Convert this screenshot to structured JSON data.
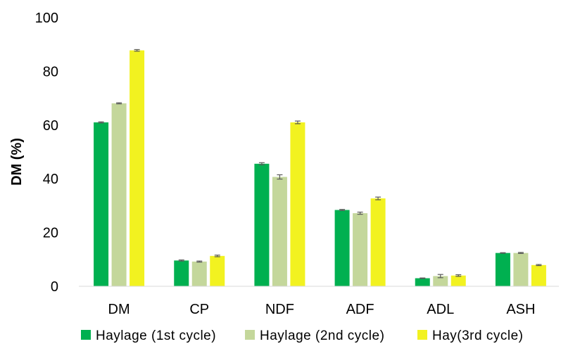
{
  "chart_data": {
    "type": "bar",
    "title": "",
    "xlabel": "",
    "ylabel": "DM (%)",
    "ylim": [
      0,
      100
    ],
    "yticks": [
      0,
      20,
      40,
      60,
      80,
      100
    ],
    "grid": false,
    "legend_position": "bottom",
    "categories": [
      "DM",
      "CP",
      "NDF",
      "ADF",
      "ADL",
      "ASH"
    ],
    "series": [
      {
        "name": "Haylage (1st cycle)",
        "color": "#00b050",
        "values": [
          61.0,
          9.6,
          45.6,
          28.4,
          3.0,
          12.4
        ],
        "errors": [
          0.2,
          0.2,
          0.4,
          0.2,
          0.1,
          0.1
        ]
      },
      {
        "name": "Haylage (2nd cycle)",
        "color": "#c4d79b",
        "values": [
          68.1,
          9.2,
          40.7,
          27.2,
          3.8,
          12.4
        ],
        "errors": [
          0.2,
          0.2,
          0.8,
          0.4,
          0.6,
          0.2
        ]
      },
      {
        "name": "Hay(3rd cycle)",
        "color": "#f2f220",
        "values": [
          87.8,
          11.3,
          61.0,
          32.7,
          4.0,
          7.9
        ],
        "errors": [
          0.3,
          0.3,
          0.5,
          0.5,
          0.3,
          0.2
        ]
      }
    ]
  }
}
